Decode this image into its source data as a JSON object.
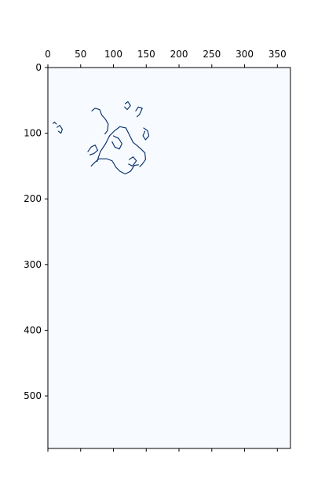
{
  "chart_data": {
    "type": "heatmap",
    "title": "",
    "xlabel": "",
    "ylabel": "",
    "x_ticks": [
      0,
      50,
      100,
      150,
      200,
      250,
      300,
      350
    ],
    "y_ticks": [
      0,
      100,
      200,
      300,
      400,
      500
    ],
    "x_tick_position": "top",
    "bottom_ticks_labeled": false,
    "xlim": [
      0,
      370
    ],
    "ylim": [
      580,
      0
    ],
    "grid": false,
    "colormap": "Blues",
    "colors": {
      "background": "#f7fbff",
      "feature": "#08306b",
      "axis": "#000000"
    },
    "features": [
      {
        "name": "fragmented-outline-cluster",
        "type": "polyline",
        "points": [
          [
            75,
            143
          ],
          [
            80,
            128
          ],
          [
            88,
            116
          ],
          [
            94,
            104
          ],
          [
            102,
            96
          ],
          [
            110,
            90
          ],
          [
            119,
            92
          ],
          [
            124,
            102
          ],
          [
            130,
            114
          ],
          [
            135,
            118
          ],
          [
            142,
            124
          ],
          [
            148,
            130
          ],
          [
            149,
            140
          ],
          [
            144,
            147
          ],
          [
            140,
            151
          ]
        ]
      },
      {
        "name": "fragmented-outline-cluster",
        "type": "polyline",
        "points": [
          [
            66,
            150
          ],
          [
            72,
            144
          ],
          [
            78,
            139
          ],
          [
            90,
            139
          ],
          [
            98,
            142
          ],
          [
            104,
            152
          ],
          [
            110,
            158
          ],
          [
            118,
            162
          ],
          [
            126,
            158
          ],
          [
            132,
            149
          ],
          [
            138,
            148
          ]
        ]
      },
      {
        "name": "fragmented-outline-cluster",
        "type": "polyline",
        "points": [
          [
            67,
            66
          ],
          [
            72,
            62
          ],
          [
            79,
            64
          ],
          [
            82,
            72
          ],
          [
            88,
            79
          ],
          [
            92,
            86
          ],
          [
            91,
            96
          ],
          [
            87,
            101
          ]
        ]
      },
      {
        "name": "fragmented-outline-cluster",
        "type": "polyline",
        "points": [
          [
            118,
            55
          ],
          [
            122,
            52
          ],
          [
            126,
            58
          ],
          [
            121,
            64
          ],
          [
            117,
            60
          ]
        ]
      },
      {
        "name": "fragmented-outline-cluster",
        "type": "polyline",
        "points": [
          [
            134,
            66
          ],
          [
            138,
            60
          ],
          [
            144,
            62
          ],
          [
            140,
            71
          ],
          [
            136,
            75
          ]
        ]
      },
      {
        "name": "fragmented-outline-cluster",
        "type": "polyline",
        "points": [
          [
            146,
            92
          ],
          [
            152,
            96
          ],
          [
            154,
            104
          ],
          [
            149,
            110
          ],
          [
            145,
            104
          ],
          [
            148,
            97
          ]
        ]
      },
      {
        "name": "fragmented-outline-cluster",
        "type": "polyline",
        "points": [
          [
            14,
            91
          ],
          [
            18,
            88
          ],
          [
            22,
            94
          ],
          [
            20,
            100
          ],
          [
            16,
            97
          ]
        ]
      },
      {
        "name": "fragmented-outline-cluster",
        "type": "polyline",
        "points": [
          [
            8,
            85
          ],
          [
            10,
            83
          ],
          [
            13,
            86
          ]
        ]
      },
      {
        "name": "fragmented-outline-cluster",
        "type": "polyline",
        "points": [
          [
            61,
            128
          ],
          [
            66,
            121
          ],
          [
            72,
            118
          ],
          [
            76,
            126
          ],
          [
            70,
            131
          ],
          [
            64,
            133
          ]
        ]
      },
      {
        "name": "fragmented-outline-cluster",
        "type": "polyline",
        "points": [
          [
            100,
            104
          ],
          [
            108,
            108
          ],
          [
            113,
            116
          ],
          [
            109,
            124
          ],
          [
            102,
            121
          ],
          [
            98,
            113
          ]
        ]
      },
      {
        "name": "fragmented-outline-cluster",
        "type": "polyline",
        "points": [
          [
            124,
            140
          ],
          [
            130,
            136
          ],
          [
            135,
            142
          ],
          [
            129,
            150
          ],
          [
            123,
            147
          ]
        ]
      }
    ]
  }
}
